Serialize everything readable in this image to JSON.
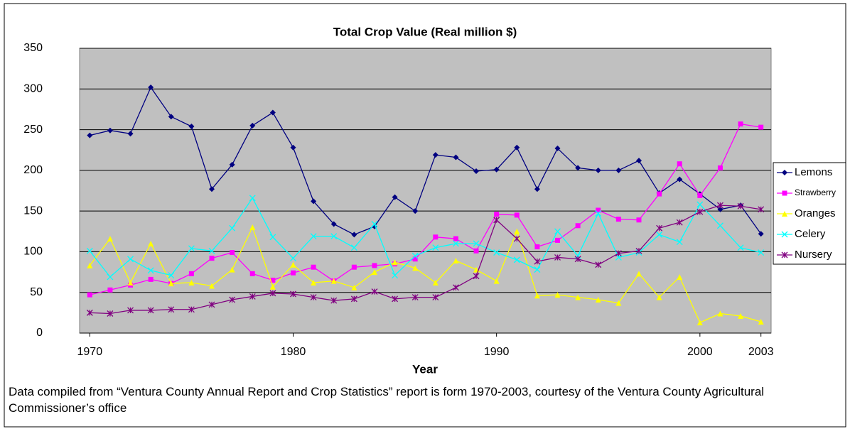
{
  "chart_data": {
    "type": "line",
    "title": "Total Crop Value (Real million $)",
    "x_label": "Year",
    "note": "Data compiled from “Ventura County Annual Report and Crop Statistics” report is form 1970-2003, courtesy of the Ventura County Agricultural Commissioner’s office",
    "x": [
      1970,
      1971,
      1972,
      1973,
      1974,
      1975,
      1976,
      1977,
      1978,
      1979,
      1980,
      1981,
      1982,
      1983,
      1984,
      1985,
      1986,
      1987,
      1988,
      1989,
      1990,
      1991,
      1992,
      1993,
      1994,
      1995,
      1996,
      1997,
      1998,
      1999,
      2000,
      2001,
      2002,
      2003
    ],
    "xlim": [
      1969.5,
      2003.5
    ],
    "xticks": [
      1970,
      1980,
      1990,
      2000,
      2003
    ],
    "ylim": [
      0,
      350
    ],
    "yticks": [
      0,
      50,
      100,
      150,
      200,
      250,
      300,
      350
    ],
    "grid": true,
    "legend": "right",
    "series": [
      {
        "name": "Lemons",
        "color": "#000080",
        "marker": "diamond",
        "values": [
          243,
          249,
          245,
          302,
          266,
          254,
          177,
          207,
          255,
          271,
          228,
          162,
          134,
          121,
          131,
          167,
          150,
          219,
          216,
          199,
          201,
          228,
          177,
          227,
          203,
          200,
          200,
          212,
          172,
          189,
          171,
          152,
          157,
          122
        ]
      },
      {
        "name": "Strawberry",
        "color": "#ff00ff",
        "marker": "square",
        "values": [
          47,
          53,
          59,
          66,
          61,
          73,
          92,
          99,
          73,
          65,
          74,
          81,
          64,
          81,
          83,
          85,
          91,
          118,
          116,
          101,
          146,
          145,
          106,
          114,
          132,
          151,
          140,
          139,
          171,
          208,
          169,
          203,
          257,
          253
        ]
      },
      {
        "name": "Oranges",
        "color": "#ffff00",
        "marker": "triangle",
        "values": [
          83,
          116,
          62,
          110,
          61,
          62,
          58,
          78,
          130,
          57,
          84,
          62,
          64,
          56,
          75,
          87,
          80,
          62,
          89,
          78,
          64,
          125,
          46,
          47,
          44,
          41,
          37,
          73,
          44,
          69,
          13,
          24,
          21,
          14
        ]
      },
      {
        "name": "Celery",
        "color": "#00ffff",
        "marker": "cross",
        "values": [
          101,
          69,
          91,
          77,
          71,
          104,
          101,
          129,
          166,
          118,
          92,
          119,
          119,
          105,
          134,
          71,
          95,
          105,
          110,
          110,
          99,
          90,
          78,
          125,
          95,
          147,
          93,
          99,
          121,
          112,
          158,
          132,
          105,
          99
        ]
      },
      {
        "name": "Nursery",
        "color": "#800080",
        "marker": "star",
        "values": [
          25,
          24,
          28,
          28,
          29,
          29,
          35,
          41,
          45,
          49,
          48,
          44,
          40,
          42,
          51,
          42,
          44,
          44,
          56,
          70,
          139,
          116,
          88,
          93,
          91,
          84,
          98,
          101,
          129,
          136,
          149,
          157,
          156,
          152
        ]
      }
    ]
  }
}
